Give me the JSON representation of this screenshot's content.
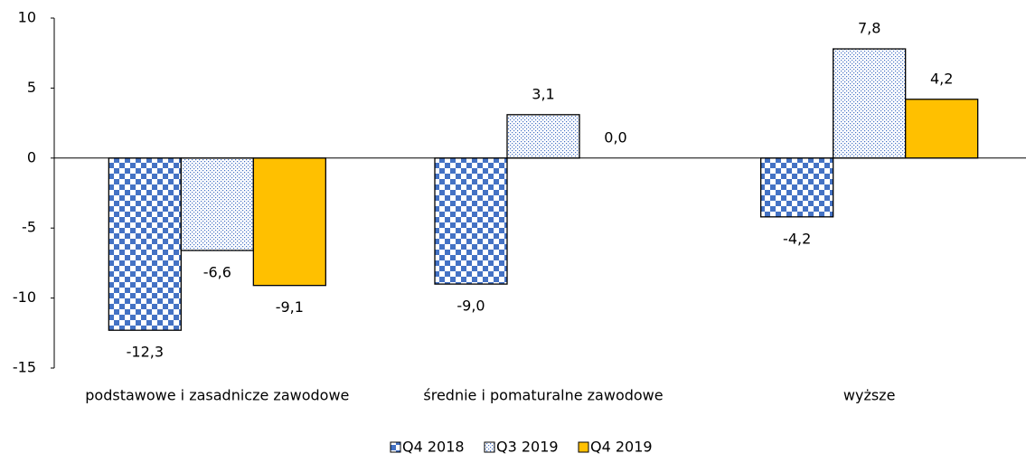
{
  "chart_data": {
    "type": "bar",
    "categories": [
      "podstawowe i zasadnicze zawodowe",
      "średnie i pomaturalne zawodowe",
      "wyższe"
    ],
    "series": [
      {
        "name": "Q4 2018",
        "color": "#4472c4",
        "pattern": "checker",
        "values": [
          -12.3,
          -9.0,
          -4.2
        ],
        "value_labels": [
          "-12,3",
          "-9,0",
          "-4,2"
        ]
      },
      {
        "name": "Q3 2019",
        "color": "#4472c4",
        "pattern": "dots",
        "values": [
          -6.6,
          3.1,
          7.8
        ],
        "value_labels": [
          "-6,6",
          "3,1",
          "7,8"
        ]
      },
      {
        "name": "Q4 2019",
        "color": "#ffc000",
        "pattern": "solid",
        "values": [
          -9.1,
          0.0,
          4.2
        ],
        "value_labels": [
          "-9,1",
          "0,0",
          "4,2"
        ]
      }
    ],
    "ylim": [
      -15,
      10
    ],
    "yticks": [
      -15,
      -10,
      -5,
      0,
      5,
      10
    ],
    "grid": false,
    "legend": "bottom"
  }
}
